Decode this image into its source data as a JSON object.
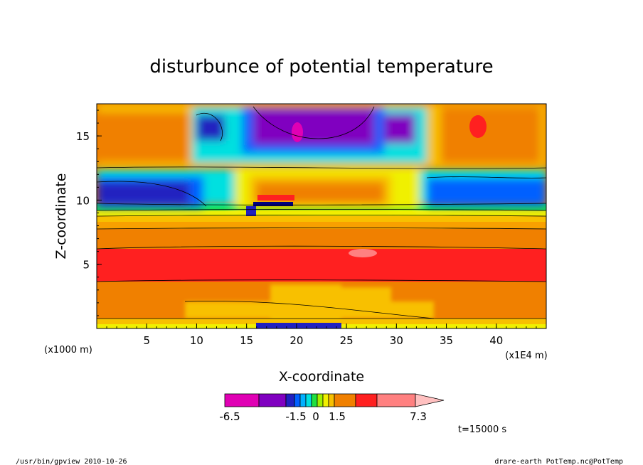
{
  "chart_data": {
    "type": "heatmap",
    "title": "disturbunce of potential temperature",
    "xlabel": "X-coordinate",
    "ylabel": "Z-coordinate",
    "x_unit_note": "(x1E4 m)",
    "y_unit_note": "(x1000 m)",
    "xlim": [
      0,
      45
    ],
    "ylim": [
      0,
      17.5
    ],
    "x_ticks": [
      5,
      10,
      15,
      20,
      25,
      30,
      35,
      40
    ],
    "y_ticks": [
      5,
      10,
      15
    ],
    "colorbar": {
      "colors": [
        "#e000b4",
        "#8000c0",
        "#2020c0",
        "#0060ff",
        "#00b0ff",
        "#00e0e0",
        "#20e040",
        "#a0f000",
        "#f0f000",
        "#f8c000",
        "#f08000",
        "#ff2020",
        "#ff8080",
        "#ffc0c0"
      ],
      "labels": [
        "-6.5",
        "-1.5",
        "0",
        "1.5",
        "7.3"
      ]
    },
    "time_label": "t=15000 s"
  },
  "footer": {
    "left": "/usr/bin/gpview   2010-10-26",
    "right": "drare-earth_PotTemp.nc@PotTemp"
  }
}
